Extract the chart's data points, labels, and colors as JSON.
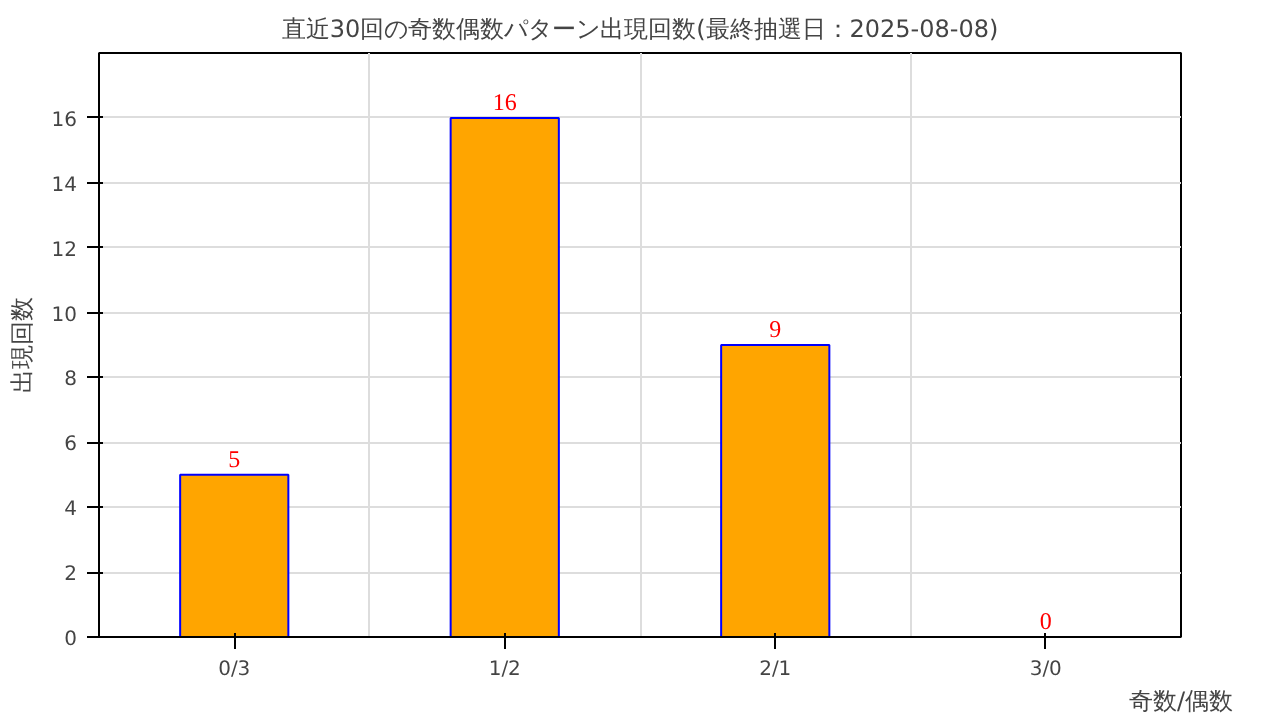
{
  "chart_data": {
    "type": "bar",
    "title": "直近30回の奇数偶数パターン出現回数(最終抽選日：2025-08-08)",
    "xlabel": "奇数/偶数",
    "ylabel": "出現回数",
    "categories": [
      "0/3",
      "1/2",
      "2/1",
      "3/0"
    ],
    "values": [
      5,
      16,
      9,
      0
    ],
    "color": "#ffa500",
    "ylim": [
      0,
      18
    ],
    "yticks": [
      0,
      2,
      4,
      6,
      8,
      10,
      12,
      14,
      16
    ],
    "grid": true,
    "data_labels": true
  }
}
